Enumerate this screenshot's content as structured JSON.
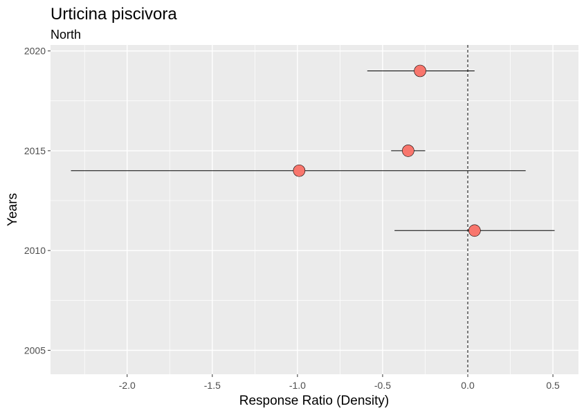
{
  "chart_data": {
    "type": "scatter",
    "title": "Urticina piscivora",
    "subtitle": "North",
    "xlabel": "Response Ratio (Density)",
    "ylabel": "Years",
    "xlim": [
      -2.45,
      0.65
    ],
    "ylim": [
      2003.8,
      2020.3
    ],
    "x_ticks": [
      -2.0,
      -1.5,
      -1.0,
      -0.5,
      0.0,
      0.5
    ],
    "x_tick_labels": [
      "-2.0",
      "-1.5",
      "-1.0",
      "-0.5",
      "0.0",
      "0.5"
    ],
    "y_ticks": [
      2005,
      2010,
      2015,
      2020
    ],
    "y_tick_labels": [
      "2005",
      "2010",
      "2015",
      "2020"
    ],
    "reference_line_x": 0,
    "grid": true,
    "legend": "none",
    "points": [
      {
        "year": 2019,
        "x": -0.28,
        "lower": -0.59,
        "upper": 0.04
      },
      {
        "year": 2015,
        "x": -0.35,
        "lower": -0.45,
        "upper": -0.25
      },
      {
        "year": 2014,
        "x": -0.99,
        "lower": -2.33,
        "upper": 0.34
      },
      {
        "year": 2011,
        "x": 0.04,
        "lower": -0.43,
        "upper": 0.51
      }
    ],
    "colors": {
      "panel": "#ebebeb",
      "grid": "#ffffff",
      "point_fill": "#f8766d",
      "point_stroke": "#000000",
      "errorbar": "#000000",
      "tick_label": "#4d4d4d"
    }
  }
}
